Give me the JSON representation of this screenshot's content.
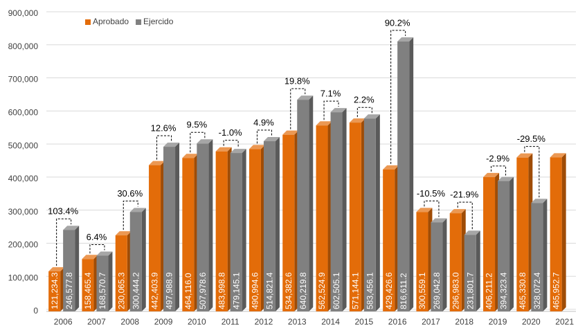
{
  "chart_data": {
    "type": "bar",
    "categories": [
      "2006",
      "2007",
      "2008",
      "2009",
      "2010",
      "2011",
      "2012",
      "2013",
      "2014",
      "2015",
      "2016",
      "2017",
      "2018",
      "2019",
      "2020",
      "2021"
    ],
    "series": [
      {
        "name": "Aprobado",
        "color": "#E36C09",
        "values": [
          121234.3,
          158465.4,
          230065.3,
          442403.9,
          464116.0,
          483998.8,
          490994.6,
          534382.6,
          562524.9,
          571144.1,
          429426.6,
          300559.1,
          296983.0,
          406211.2,
          465330.8,
          465952.7
        ],
        "value_labels": [
          "121,234.3",
          "158,465.4",
          "230,065.3",
          "442,403.9",
          "464,116.0",
          "483,998.8",
          "490,994.6",
          "534,382.6",
          "562,524.9",
          "571,144.1",
          "429,426.6",
          "300,559.1",
          "296,983.0",
          "406,211.2",
          "465,330.8",
          "465,952.7"
        ]
      },
      {
        "name": "Ejercido",
        "color": "#808080",
        "values": [
          246577.8,
          168570.7,
          300444.2,
          497988.9,
          507978.6,
          479145.1,
          514821.4,
          640219.8,
          602505.1,
          583456.1,
          816611.2,
          269042.8,
          231801.7,
          394323.4,
          328072.4,
          null
        ],
        "value_labels": [
          "246,577.8",
          "168,570.7",
          "300,444.2",
          "497,988.9",
          "507,978.6",
          "479,145.1",
          "514,821.4",
          "640,219.8",
          "602,505.1",
          "583,456.1",
          "816,611.2",
          "269,042.8",
          "231,801.7",
          "394,323.4",
          "328,072.4",
          null
        ]
      }
    ],
    "annotations": [
      "103.4%",
      "6.4%",
      "30.6%",
      "12.6%",
      "9.5%",
      "-1.0%",
      "4.9%",
      "19.8%",
      "7.1%",
      "2.2%",
      "90.2%",
      "-10.5%",
      "-21.9%",
      "-2.9%",
      "-29.5%",
      null
    ],
    "ylim": [
      0,
      900000
    ],
    "yticks": [
      0,
      {
        "value": 100000,
        "label": "100,000"
      },
      {
        "value": 200000,
        "label": "200,000"
      },
      {
        "value": 300000,
        "label": "300,000"
      },
      {
        "value": 400000,
        "label": "400,000"
      },
      {
        "value": 500000,
        "label": "500,000"
      },
      {
        "value": 600000,
        "label": "600,000"
      },
      {
        "value": 700000,
        "label": "700,000"
      },
      {
        "value": 800000,
        "label": "800,000"
      },
      {
        "value": 900000,
        "label": "900,000"
      }
    ],
    "grid": true,
    "legend": "upper left"
  }
}
